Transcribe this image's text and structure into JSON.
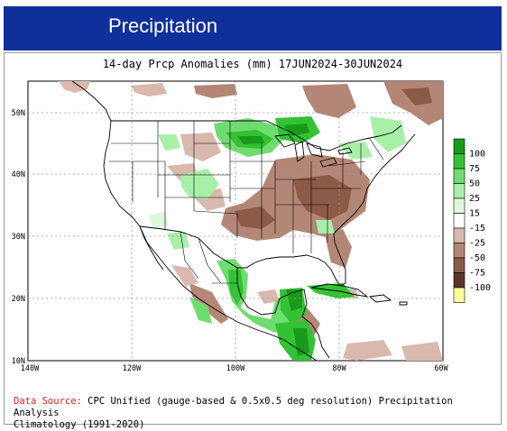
{
  "header": {
    "title": "Precipitation"
  },
  "map": {
    "title": "14-day Prcp Anomalies (mm) 17JUN2024-30JUN2024",
    "lat_labels": [
      "50N",
      "40N",
      "30N",
      "20N",
      "10N"
    ],
    "lon_labels": [
      "140W",
      "120W",
      "100W",
      "80W",
      "60W"
    ],
    "legend": [
      {
        "label": "100",
        "color": "#1a9a1a"
      },
      {
        "label": "75",
        "color": "#33c233"
      },
      {
        "label": "50",
        "color": "#6fdc6f"
      },
      {
        "label": "25",
        "color": "#a8f0a8"
      },
      {
        "label": "15",
        "color": "#ddf8dd"
      },
      {
        "label": "-15",
        "color": "#ffffff"
      },
      {
        "label": "-25",
        "color": "#d9b8ad"
      },
      {
        "label": "-50",
        "color": "#b38676"
      },
      {
        "label": "-75",
        "color": "#8b5a49"
      },
      {
        "label": "-100",
        "color": "#5d3425"
      },
      {
        "label": "",
        "color": "#ffff9a"
      }
    ]
  },
  "source": {
    "label": "Data Source:",
    "line1": " CPC Unified (gauge-based & 0.5x0.5 deg resolution) Precipitation Analysis",
    "line2": "Climatology (1991-2020)"
  }
}
